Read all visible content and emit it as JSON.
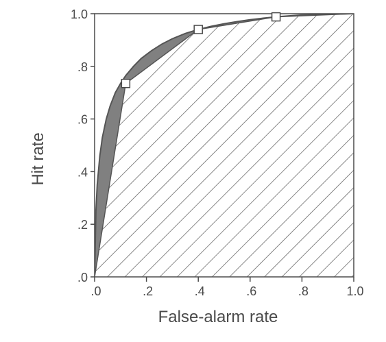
{
  "chart_data": {
    "type": "line",
    "title": "",
    "xlabel": "False-alarm rate",
    "ylabel": "Hit rate",
    "xlim": [
      0,
      1
    ],
    "ylim": [
      0,
      1
    ],
    "x_tick_labels": [
      ".0",
      ".2",
      ".4",
      ".6",
      ".8",
      "1.0"
    ],
    "x_tick_values": [
      0,
      0.2,
      0.4,
      0.6,
      0.8,
      1.0
    ],
    "y_tick_labels": [
      ".0",
      ".2",
      ".4",
      ".6",
      ".8",
      "1.0"
    ],
    "y_tick_values": [
      0,
      0.2,
      0.4,
      0.6,
      0.8,
      1.0
    ],
    "grid": false,
    "series": [
      {
        "kind": "smooth-curve",
        "x": [
          0,
          0.005,
          0.01,
          0.02,
          0.03,
          0.045,
          0.06,
          0.08,
          0.1,
          0.12,
          0.15,
          0.18,
          0.22,
          0.26,
          0.3,
          0.35,
          0.4,
          0.45,
          0.5,
          0.55,
          0.6,
          0.65,
          0.7,
          0.75,
          0.8,
          0.85,
          0.9,
          0.95,
          1.0
        ],
        "y": [
          0,
          0.25,
          0.35,
          0.46,
          0.53,
          0.6,
          0.65,
          0.7,
          0.735,
          0.765,
          0.8,
          0.83,
          0.86,
          0.885,
          0.905,
          0.925,
          0.94,
          0.952,
          0.962,
          0.97,
          0.977,
          0.983,
          0.988,
          0.992,
          0.995,
          0.997,
          0.998,
          0.999,
          1.0
        ]
      },
      {
        "kind": "points-connected",
        "x": [
          0,
          0.12,
          0.4,
          0.7,
          1.0
        ],
        "y": [
          0,
          0.735,
          0.94,
          0.988,
          1.0
        ],
        "markers": [
          false,
          true,
          true,
          true,
          false
        ]
      }
    ],
    "fills": {
      "between_curve_and_polygon": "#808080",
      "under_polygon": "hatched"
    },
    "colors": {
      "axis": "#4a4a4a",
      "curve": "#555555",
      "shade": "#808080",
      "hatch": "#555555",
      "marker_fill": "#ffffff"
    }
  }
}
